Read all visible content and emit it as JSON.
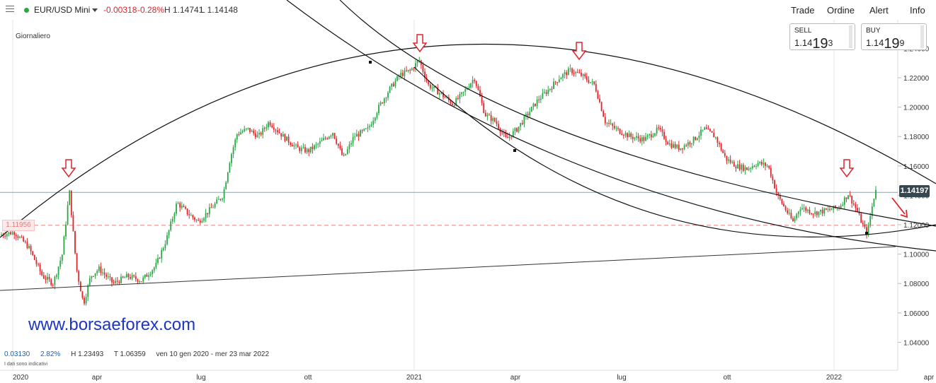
{
  "header": {
    "symbol": "EUR/USD Mini",
    "change": "-0.00318",
    "change_pct": "-0.28%",
    "high": "H 1.14741",
    "low": "L 1.14148",
    "nav": [
      "Trade",
      "Ordine",
      "Alert",
      "Info"
    ]
  },
  "prices": {
    "sell_label": "SELL",
    "sell_prefix": "1.14",
    "sell_big": "19",
    "sell_small": "3",
    "buy_label": "BUY",
    "buy_prefix": "1.14",
    "buy_big": "19",
    "buy_small": "9"
  },
  "timeframe": "Giornaliero",
  "watermark": "www.borsaeforex.com",
  "stats": {
    "range": "0.03130",
    "range_pct": "2.82%",
    "high": "H 1.23493",
    "low": "T 1.06359",
    "dates": "ven 10 gen 2020 - mer 23 mar 2022"
  },
  "note": "I dati sono indicativi",
  "chart_data": {
    "type": "candlestick",
    "yticks": [
      "1.04000",
      "1.06000",
      "1.08000",
      "1.10000",
      "1.12000",
      "1.14000",
      "1.16000",
      "1.18000",
      "1.20000",
      "1.22000",
      "1.24000"
    ],
    "ylim": [
      1.03,
      1.25
    ],
    "xticks": [
      "2020",
      "apr",
      "lug",
      "ott",
      "2021",
      "apr",
      "lug",
      "ott",
      "2022",
      "apr"
    ],
    "last_price": "1.14197",
    "ref_price_label": "1.11956",
    "ref_price": 1.1196,
    "colors": {
      "up": "#27a844",
      "down": "#e0242b",
      "ref": "#ef8a8a",
      "arrow": "#e0242b"
    },
    "annotations": "trendlines, arcs and down arrows marking tops",
    "path": [
      [
        0,
        1.113
      ],
      [
        20,
        1.115
      ],
      [
        40,
        1.105
      ],
      [
        60,
        1.085
      ],
      [
        75,
        1.08
      ],
      [
        88,
        1.1
      ],
      [
        98,
        1.143
      ],
      [
        108,
        1.09
      ],
      [
        118,
        1.066
      ],
      [
        128,
        1.085
      ],
      [
        140,
        1.09
      ],
      [
        160,
        1.08
      ],
      [
        180,
        1.085
      ],
      [
        200,
        1.082
      ],
      [
        220,
        1.092
      ],
      [
        235,
        1.11
      ],
      [
        250,
        1.135
      ],
      [
        265,
        1.128
      ],
      [
        280,
        1.122
      ],
      [
        300,
        1.132
      ],
      [
        315,
        1.14
      ],
      [
        325,
        1.165
      ],
      [
        335,
        1.182
      ],
      [
        350,
        1.185
      ],
      [
        365,
        1.18
      ],
      [
        380,
        1.19
      ],
      [
        400,
        1.18
      ],
      [
        420,
        1.172
      ],
      [
        435,
        1.17
      ],
      [
        450,
        1.175
      ],
      [
        470,
        1.183
      ],
      [
        485,
        1.165
      ],
      [
        500,
        1.18
      ],
      [
        520,
        1.185
      ],
      [
        535,
        1.2
      ],
      [
        550,
        1.212
      ],
      [
        565,
        1.222
      ],
      [
        580,
        1.225
      ],
      [
        592,
        1.232
      ],
      [
        605,
        1.215
      ],
      [
        620,
        1.21
      ],
      [
        640,
        1.202
      ],
      [
        655,
        1.21
      ],
      [
        670,
        1.22
      ],
      [
        685,
        1.195
      ],
      [
        700,
        1.19
      ],
      [
        715,
        1.178
      ],
      [
        730,
        1.185
      ],
      [
        745,
        1.195
      ],
      [
        760,
        1.205
      ],
      [
        775,
        1.212
      ],
      [
        790,
        1.22
      ],
      [
        805,
        1.225
      ],
      [
        820,
        1.222
      ],
      [
        840,
        1.215
      ],
      [
        855,
        1.19
      ],
      [
        870,
        1.185
      ],
      [
        890,
        1.18
      ],
      [
        910,
        1.178
      ],
      [
        930,
        1.185
      ],
      [
        945,
        1.175
      ],
      [
        960,
        1.172
      ],
      [
        980,
        1.178
      ],
      [
        995,
        1.185
      ],
      [
        1010,
        1.18
      ],
      [
        1025,
        1.165
      ],
      [
        1040,
        1.16
      ],
      [
        1055,
        1.158
      ],
      [
        1070,
        1.162
      ],
      [
        1085,
        1.16
      ],
      [
        1098,
        1.14
      ],
      [
        1110,
        1.13
      ],
      [
        1120,
        1.122
      ],
      [
        1130,
        1.132
      ],
      [
        1150,
        1.128
      ],
      [
        1170,
        1.13
      ],
      [
        1185,
        1.132
      ],
      [
        1198,
        1.141
      ],
      [
        1210,
        1.13
      ],
      [
        1220,
        1.118
      ],
      [
        1225,
        1.114
      ],
      [
        1230,
        1.128
      ],
      [
        1237,
        1.145
      ],
      [
        1240,
        1.142
      ]
    ]
  }
}
